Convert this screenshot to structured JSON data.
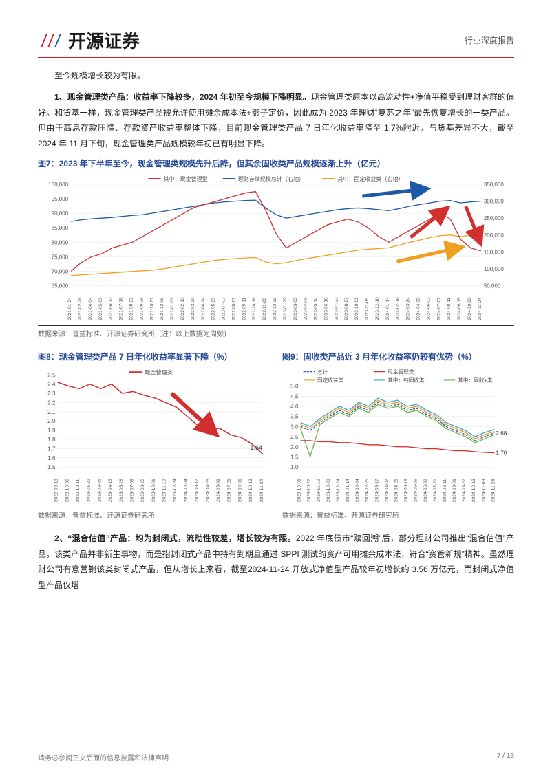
{
  "header": {
    "logo_text": "开源证券",
    "report_type": "行业深度报告"
  },
  "intro_line": "至今规模增长较为有限。",
  "para1_bold_prefix": "1、现金管理类产品：收益率下降较多，2024 年初至今规模下降明显。",
  "para1_rest": "现金管理类原本以高流动性+净值平稳受到理财客群的偏好。和货基一样，现金管理类产品被允许使用摊余成本法+影子定价，因此成为 2023 年理财“复苏之年”最先恢复增长的一类产品。但由于高息存款压降、存款资产收益率整体下降，目前现金管理类产品 7 日年化收益率降至 1.7%附近，与货基差异不大，截至 2024 年 11 月下旬，现金管理类产品规模较年初已有明显下降。",
  "fig7": {
    "title": "图7：2023 年下半年至今，现金管理类规模先升后降，但其余固收类产品规模逐渐上升（亿元）",
    "legend": [
      "其中：现金管理型",
      "理财存续规模总计（右轴）",
      "其中：固定收益类（右轴）"
    ],
    "legend_colors": [
      "#d32f2f",
      "#1e5aa8",
      "#f0a020"
    ],
    "left_axis": {
      "min": 65000,
      "max": 100000,
      "ticks": [
        65000,
        70000,
        75000,
        80000,
        85000,
        90000,
        95000,
        100000
      ]
    },
    "right_axis": {
      "min": 50000,
      "max": 350000,
      "ticks": [
        50000,
        100000,
        150000,
        200000,
        250000,
        300000,
        350000
      ]
    },
    "x_labels": [
      "2021-01-24",
      "2021-02-28",
      "2021-04-04",
      "2021-05-09",
      "2021-06-13",
      "2021-07-18",
      "2021-08-22",
      "2021-09-26",
      "2021-10-31",
      "2021-12-05",
      "2022-01-09",
      "2022-02-13",
      "2022-03-20",
      "2022-04-24",
      "2022-05-29",
      "2022-07-03",
      "2022-08-07",
      "2022-09-11",
      "2022-10-16",
      "2022-11-20",
      "2022-12-25",
      "2023-01-29",
      "2023-03-05",
      "2023-04-09",
      "2023-05-14",
      "2023-06-18",
      "2023-07-23",
      "2023-08-27",
      "2023-10-01",
      "2023-11-05",
      "2023-12-10",
      "2024-01-14",
      "2024-02-18",
      "2024-03-24",
      "2024-04-28",
      "2024-06-02",
      "2024-07-07",
      "2024-08-11",
      "2024-09-15",
      "2024-10-20",
      "2024-11-24"
    ],
    "series_red": [
      70000,
      73000,
      75000,
      76000,
      78000,
      79000,
      80000,
      82000,
      84000,
      86000,
      88000,
      90000,
      92000,
      93000,
      94000,
      95000,
      96000,
      97000,
      97500,
      91000,
      83000,
      78000,
      80000,
      82000,
      84000,
      86000,
      87000,
      88000,
      87000,
      85000,
      82000,
      80000,
      82000,
      84000,
      86000,
      88000,
      90000,
      88000,
      81000,
      78000,
      77000
    ],
    "series_blue": [
      240000,
      245000,
      248000,
      250000,
      252000,
      255000,
      258000,
      260000,
      265000,
      270000,
      275000,
      280000,
      285000,
      290000,
      295000,
      298000,
      300000,
      302000,
      303000,
      280000,
      260000,
      250000,
      255000,
      260000,
      265000,
      270000,
      275000,
      278000,
      280000,
      278000,
      275000,
      272000,
      278000,
      285000,
      290000,
      295000,
      300000,
      302000,
      295000,
      298000,
      300000
    ],
    "series_yellow": [
      80000,
      82000,
      84000,
      86000,
      88000,
      90000,
      92000,
      94000,
      96000,
      100000,
      105000,
      110000,
      115000,
      120000,
      125000,
      128000,
      130000,
      132000,
      133000,
      120000,
      115000,
      118000,
      125000,
      130000,
      135000,
      140000,
      145000,
      150000,
      155000,
      158000,
      160000,
      162000,
      170000,
      178000,
      185000,
      192000,
      198000,
      200000,
      195000,
      200000,
      205000
    ],
    "source": "数据来源：普益标准、开源证券研究所（注：以上数据为周频）",
    "background_color": "#ffffff",
    "grid_color": "#e8e8e8"
  },
  "fig8": {
    "title": "图8：现金管理类产品 7 日年化收益率显著下降（%）",
    "legend": [
      "现金管理类"
    ],
    "legend_colors": [
      "#d32f2f"
    ],
    "y_axis": {
      "min": 1.5,
      "max": 2.5,
      "ticks": [
        1.5,
        1.6,
        1.7,
        1.8,
        1.9,
        2.0,
        2.1,
        2.2,
        2.3,
        2.4,
        2.5
      ]
    },
    "x_labels": [
      "2022-09-18",
      "2022-10-30",
      "2022-12-11",
      "2023-01-22",
      "2023-03-05",
      "2023-04-16",
      "2023-05-28",
      "2023-07-09",
      "2023-08-20",
      "2023-10-01",
      "2023-11-12",
      "2023-12-24",
      "2024-02-04",
      "2024-03-17",
      "2024-04-28",
      "2024-06-09",
      "2024-07-21",
      "2024-09-01",
      "2024-10-13",
      "2024-11-24"
    ],
    "series_red": [
      2.42,
      2.38,
      2.35,
      2.4,
      2.35,
      2.4,
      2.3,
      2.32,
      2.28,
      2.25,
      2.2,
      2.15,
      2.05,
      1.95,
      1.9,
      1.92,
      1.85,
      1.82,
      1.75,
      1.64
    ],
    "end_label": "1.64",
    "source": "数据来源：普益标准、开源证券研究所",
    "background_color": "#ffffff",
    "grid_color": "#e8e8e8"
  },
  "fig9": {
    "title": "图9：固收类产品近 3 月年化收益率仍较有优势（%）",
    "legend": [
      "总计",
      "现金管理类",
      "固定收益类",
      "其中：纯固收类",
      "其中：固收+类"
    ],
    "legend_colors": [
      "#2a4b9a",
      "#d32f2f",
      "#f0a020",
      "#3aa8d8",
      "#6eb84d"
    ],
    "y_axis": {
      "min": 1.0,
      "max": 5.0,
      "ticks": [
        1.0,
        1.5,
        2.0,
        2.5,
        3.0,
        3.5,
        4.0,
        4.5,
        5.0
      ]
    },
    "x_labels": [
      "2023-10-01",
      "2023-10-22",
      "2023-11-12",
      "2023-12-03",
      "2023-12-24",
      "2024-01-14",
      "2024-02-04",
      "2024-02-25",
      "2024-03-17",
      "2024-04-07",
      "2024-04-28",
      "2024-05-19",
      "2024-06-09",
      "2024-06-30",
      "2024-07-21",
      "2024-08-11",
      "2024-09-01",
      "2024-09-22",
      "2024-10-13",
      "2024-11-03",
      "2024-11-24"
    ],
    "series_total": [
      3.0,
      2.8,
      3.2,
      3.5,
      3.8,
      3.6,
      4.0,
      3.8,
      4.2,
      4.0,
      4.1,
      3.8,
      3.9,
      3.6,
      3.4,
      3.0,
      2.8,
      2.6,
      2.3,
      2.5,
      2.68
    ],
    "series_cash": [
      2.3,
      2.3,
      2.25,
      2.25,
      2.2,
      2.2,
      2.15,
      2.1,
      2.1,
      2.05,
      2.0,
      2.0,
      1.95,
      1.9,
      1.9,
      1.85,
      1.8,
      1.8,
      1.75,
      1.72,
      1.7
    ],
    "series_fixed": [
      3.1,
      2.9,
      3.3,
      3.6,
      3.9,
      3.7,
      4.1,
      3.9,
      4.3,
      4.1,
      4.2,
      3.9,
      4.0,
      3.7,
      3.5,
      3.1,
      2.9,
      2.7,
      2.4,
      2.6,
      2.75
    ],
    "series_pure": [
      3.2,
      3.0,
      3.4,
      3.7,
      4.0,
      3.8,
      4.2,
      4.0,
      4.4,
      4.2,
      4.3,
      4.0,
      4.1,
      3.8,
      3.6,
      3.2,
      3.0,
      2.8,
      2.5,
      2.7,
      2.85
    ],
    "series_plus": [
      2.9,
      1.5,
      3.1,
      3.4,
      3.7,
      3.5,
      3.9,
      3.7,
      4.1,
      3.9,
      4.0,
      3.7,
      3.8,
      3.5,
      3.3,
      2.9,
      2.7,
      2.5,
      2.2,
      2.4,
      2.6
    ],
    "end_labels": {
      "total": "2.68",
      "cash": "1.70"
    },
    "source": "数据来源：普益标准、开源证券研究所",
    "background_color": "#ffffff",
    "grid_color": "#e8e8e8"
  },
  "para2_bold_prefix": "2、“混合估值”产品：均为封闭式，流动性较差，增长较为有限。",
  "para2_rest": "2022 年底债市“赎回潮”后，部分理财公司推出“混合估值”产品，该类产品并非新生事物，而是指封闭式产品中持有到期且通过 SPPI 测试的资产可用摊余成本法，符合“资管新规”精神。虽然理财公司有意营销该类封闭式产品，但从增长上来看，截至2024-11-24 开放式净值型产品较年初增长约 3.56 万亿元，而封闭式净值型产品仅增",
  "footer": {
    "left": "请务必参阅正文后面的信息披露和法律声明",
    "right": "7 / 13"
  }
}
